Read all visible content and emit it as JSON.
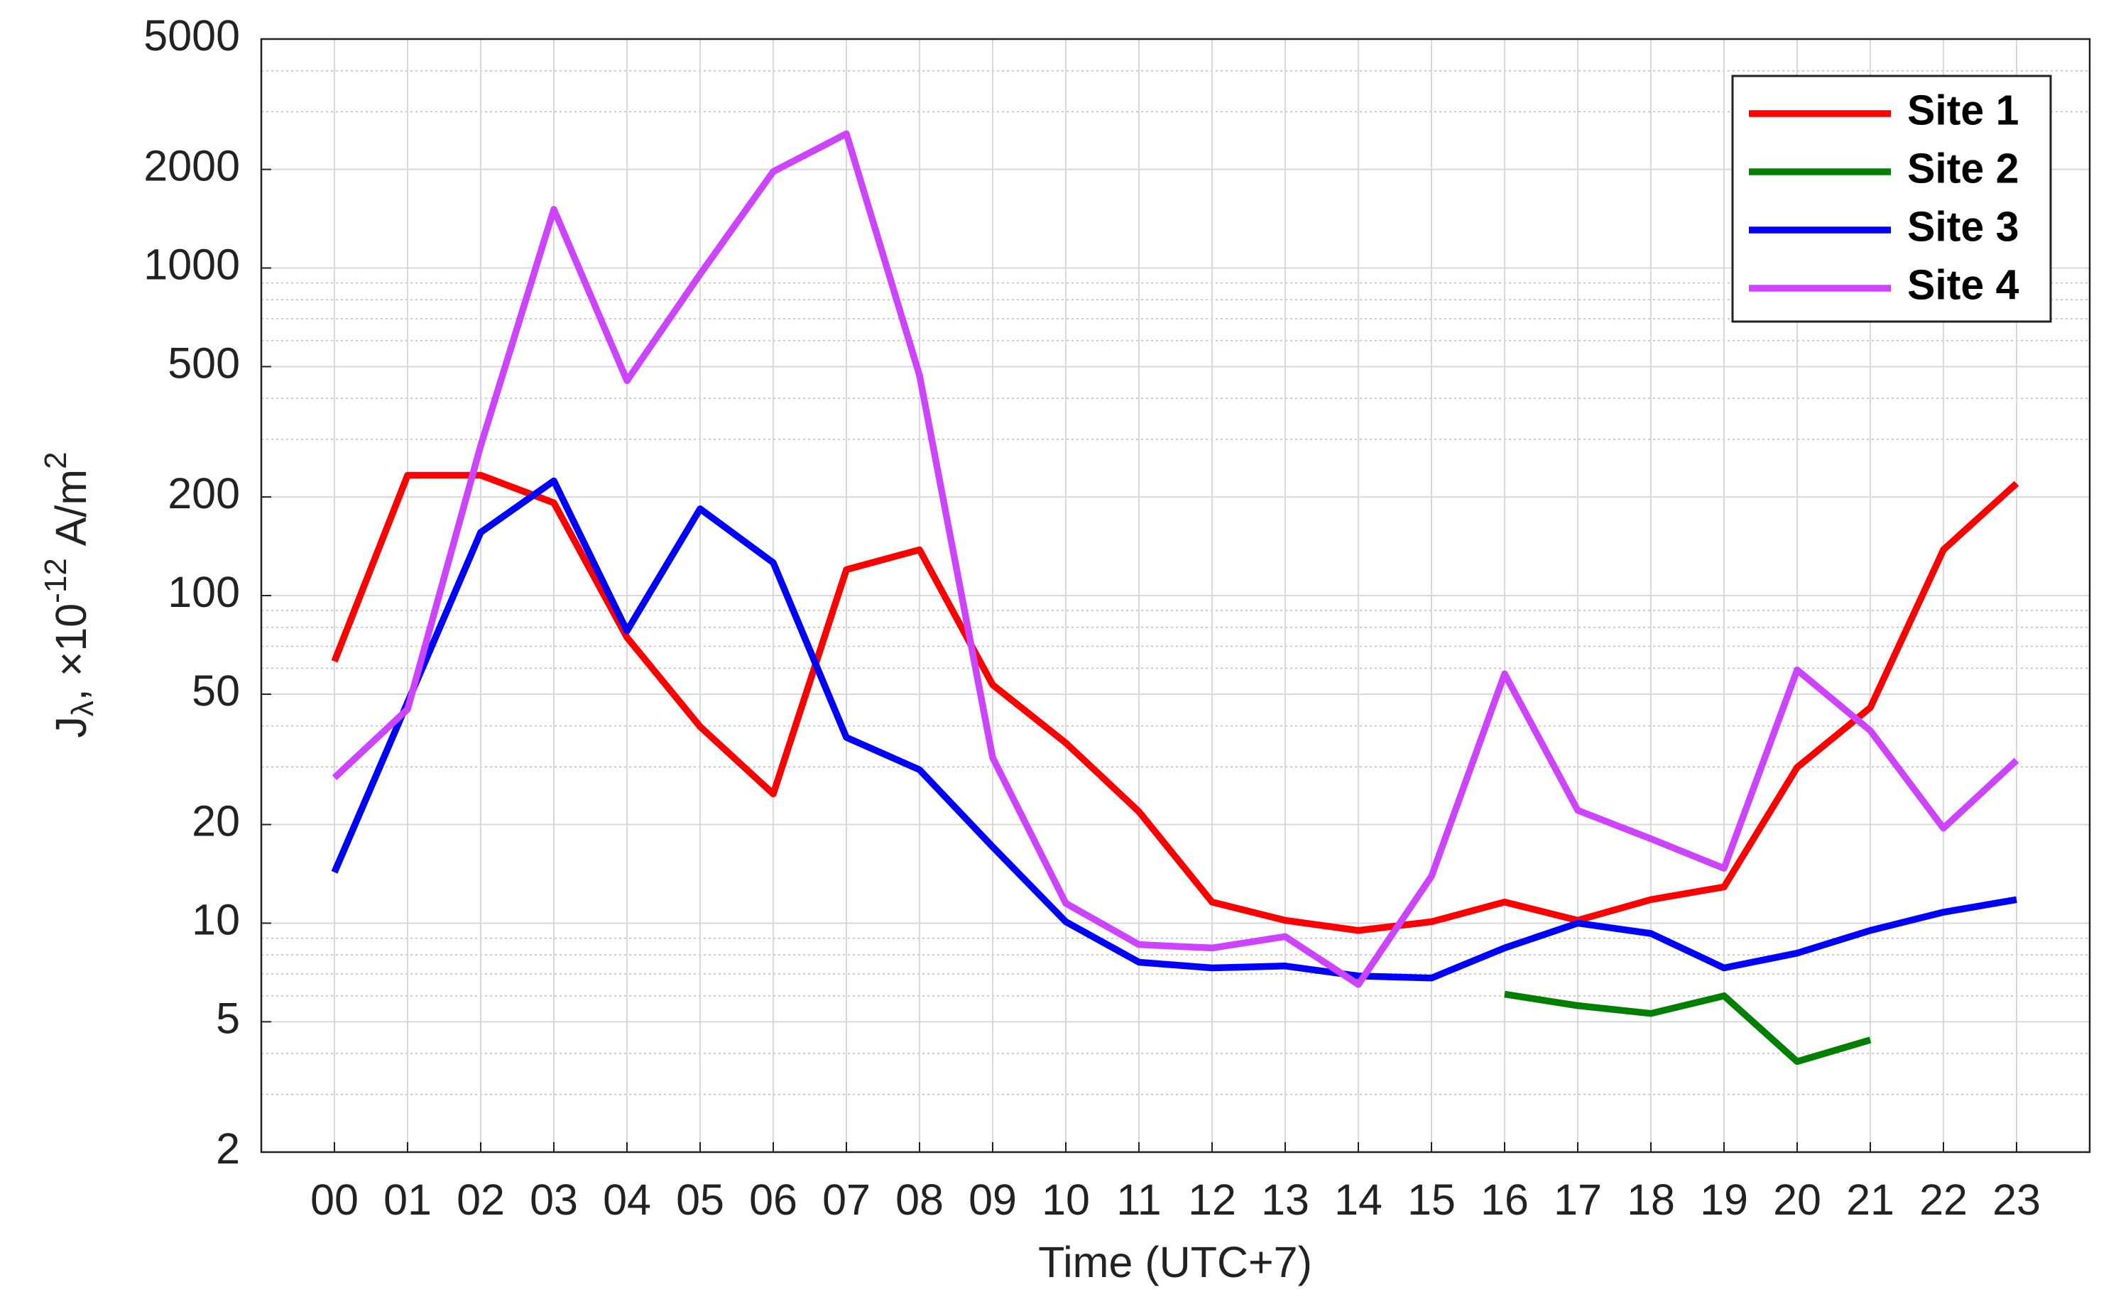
{
  "chart_data": {
    "type": "line",
    "xlabel": "Time (UTC+7)",
    "ylabel": [
      "J",
      "λ",
      ", ×10",
      "-12",
      " A/m",
      "2"
    ],
    "categories": [
      "00",
      "01",
      "02",
      "03",
      "04",
      "05",
      "06",
      "07",
      "08",
      "09",
      "10",
      "11",
      "12",
      "13",
      "14",
      "15",
      "16",
      "17",
      "18",
      "19",
      "20",
      "21",
      "22",
      "23"
    ],
    "ylog": true,
    "ylim": [
      2,
      5000
    ],
    "yticks": [
      2,
      5,
      10,
      20,
      50,
      100,
      200,
      500,
      1000,
      2000,
      5000
    ],
    "grid": true,
    "minor_grid": true,
    "legend_loc": "upper right",
    "series": [
      {
        "name": "Site 1",
        "color": "#ff0000",
        "values": [
          63,
          233,
          233,
          192,
          74.5,
          39.8,
          24.8,
          120,
          138,
          53.4,
          35.5,
          21.9,
          11.6,
          10.2,
          9.5,
          10.1,
          11.6,
          10.2,
          11.8,
          12.9,
          29.9,
          45.5,
          138,
          220
        ]
      },
      {
        "name": "Site 2",
        "color": "#007f00",
        "values": [
          null,
          null,
          null,
          null,
          null,
          null,
          null,
          null,
          null,
          null,
          null,
          null,
          null,
          null,
          null,
          null,
          6.07,
          5.6,
          5.3,
          6.0,
          3.78,
          4.4,
          null,
          null
        ]
      },
      {
        "name": "Site 3",
        "color": "#0000ff",
        "values": [
          14.3,
          47.2,
          156,
          224,
          78,
          184,
          126,
          36.9,
          29.4,
          17.1,
          10.1,
          7.6,
          7.3,
          7.4,
          6.9,
          6.8,
          8.4,
          10,
          9.3,
          7.3,
          8.1,
          9.5,
          10.8,
          11.8
        ]
      },
      {
        "name": "Site 4",
        "color": "#cc44ff",
        "values": [
          27.8,
          45,
          287,
          1510,
          453,
          958,
          1970,
          2570,
          470,
          32,
          11.5,
          8.6,
          8.4,
          9.1,
          6.5,
          13.9,
          57.7,
          22.1,
          18.1,
          14.7,
          59.3,
          38.7,
          19.5,
          31.4
        ]
      }
    ]
  }
}
